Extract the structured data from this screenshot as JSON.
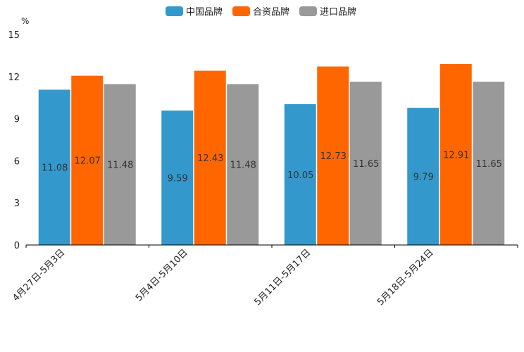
{
  "chart_data": {
    "type": "bar",
    "title": "",
    "ylabel": "%",
    "xlabel": "",
    "ylim": [
      0,
      15
    ],
    "yticks": [
      0,
      3,
      6,
      9,
      12,
      15
    ],
    "grid": false,
    "legend_position": "top-center",
    "categories": [
      "4月27日-5月3日",
      "5月4日-5月10日",
      "5月11日-5月17日",
      "5月18日-5月24日"
    ],
    "series": [
      {
        "name": "中国品牌",
        "color": "#3399cc",
        "values": [
          11.08,
          9.59,
          10.05,
          9.79
        ]
      },
      {
        "name": "合资品牌",
        "color": "#ff6600",
        "values": [
          12.07,
          12.43,
          12.73,
          12.91
        ]
      },
      {
        "name": "进口品牌",
        "color": "#999999",
        "values": [
          11.48,
          11.48,
          11.65,
          11.65
        ]
      }
    ]
  }
}
